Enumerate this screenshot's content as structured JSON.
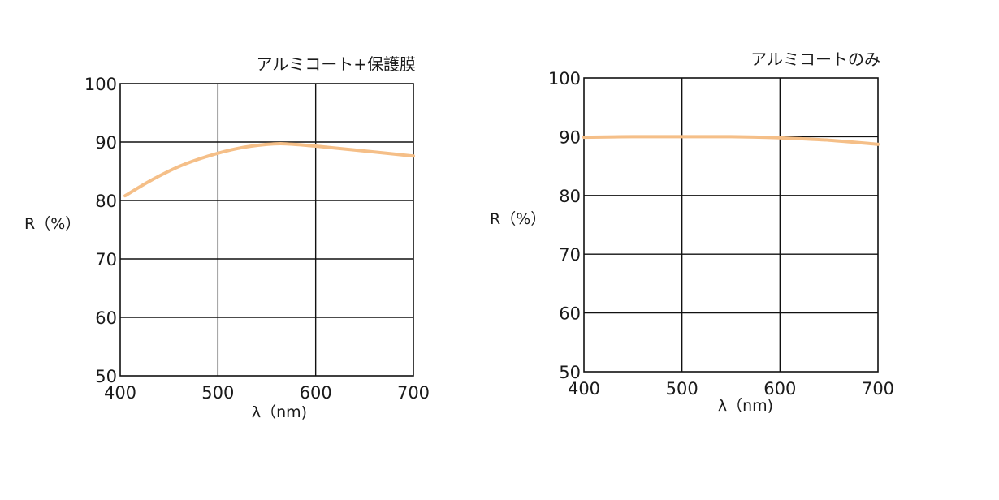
{
  "chart_data": [
    {
      "type": "line",
      "title": "アルミコート+保護膜",
      "xlabel": "λ（nm)",
      "ylabel": "R（%）",
      "xlim": [
        400,
        700
      ],
      "ylim": [
        50,
        100
      ],
      "xticks": [
        "400",
        "500",
        "600",
        "700"
      ],
      "yticks": [
        "50",
        "60",
        "70",
        "80",
        "90",
        "100"
      ],
      "grid": true,
      "series_color": "#f5bf88",
      "series": [
        {
          "x": [
            405,
            430,
            460,
            490,
            520,
            550,
            570,
            600,
            630,
            660,
            700
          ],
          "values": [
            80.8,
            83.3,
            85.8,
            87.6,
            88.9,
            89.6,
            89.7,
            89.3,
            88.8,
            88.3,
            87.6
          ]
        }
      ]
    },
    {
      "type": "line",
      "title": "アルミコートのみ",
      "xlabel": "λ（nm)",
      "ylabel": "R（%）",
      "xlim": [
        400,
        700
      ],
      "ylim": [
        50,
        100
      ],
      "xticks": [
        "400",
        "500",
        "600",
        "700"
      ],
      "yticks": [
        "50",
        "60",
        "70",
        "80",
        "90",
        "100"
      ],
      "grid": true,
      "series_color": "#f5bf88",
      "series": [
        {
          "x": [
            400,
            450,
            500,
            550,
            600,
            650,
            700
          ],
          "values": [
            89.9,
            90.0,
            90.0,
            90.0,
            89.8,
            89.4,
            88.7
          ]
        }
      ]
    }
  ]
}
